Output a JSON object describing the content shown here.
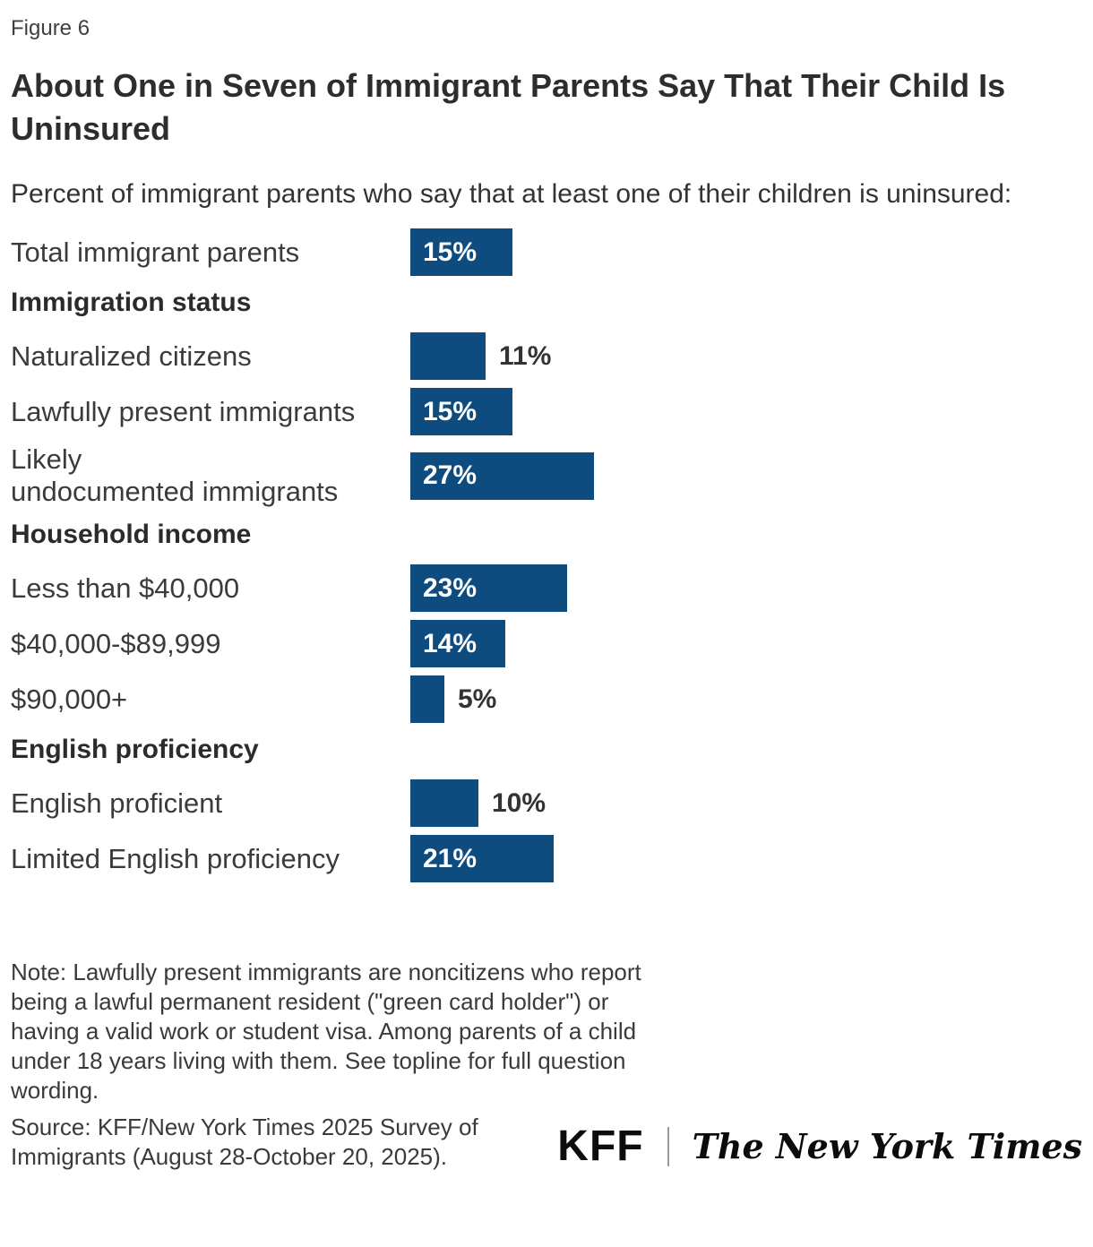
{
  "figure": {
    "label": "Figure 6",
    "title": "About One in Seven of Immigrant Parents Say That Their Child Is Uninsured",
    "subtitle": "Percent of immigrant parents who say that at least one of their children is uninsured:",
    "note": "Note: Lawfully present immigrants are noncitizens who report being a lawful permanent resident (\"green card holder\") or having a valid work or student visa. Among parents of a child under 18 years living with them. See topline for full question wording.",
    "source": "Source: KFF/New York Times 2025 Survey of Immigrants (August 28-October 20, 2025)."
  },
  "footer": {
    "kff_logo_text": "KFF",
    "nyt_logo_text": "The New York Times"
  },
  "colors": {
    "bar_blue": "#0E4C80",
    "value_label_inside": "#FFFFFF",
    "value_label_outside": "#333333"
  },
  "chart_data": {
    "type": "bar",
    "orientation": "horizontal",
    "title": "About One in Seven of Immigrant Parents Say That Their Child Is Uninsured",
    "subtitle": "Percent of immigrant parents who say that at least one of their children is uninsured:",
    "xlabel": "",
    "ylabel": "",
    "value_unit": "percent",
    "xlim": [
      0,
      30
    ],
    "grid": false,
    "legend": false,
    "bar_color": "#0E4C80",
    "groups": [
      {
        "header": null,
        "rows": [
          {
            "label": "Total immigrant parents",
            "label_lines": [
              "Total immigrant parents"
            ],
            "value": 15,
            "value_label": "15%",
            "value_position": "inside"
          }
        ]
      },
      {
        "header": "Immigration status",
        "rows": [
          {
            "label": "Naturalized citizens",
            "label_lines": [
              "Naturalized citizens"
            ],
            "value": 11,
            "value_label": "11%",
            "value_position": "outside"
          },
          {
            "label": "Lawfully present immigrants",
            "label_lines": [
              "Lawfully present immigrants"
            ],
            "value": 15,
            "value_label": "15%",
            "value_position": "inside"
          },
          {
            "label": "Likely undocumented immigrants",
            "label_lines": [
              "Likely",
              "undocumented immigrants"
            ],
            "value": 27,
            "value_label": "27%",
            "value_position": "inside"
          }
        ]
      },
      {
        "header": "Household income",
        "rows": [
          {
            "label": "Less than $40,000",
            "label_lines": [
              "Less than $40,000"
            ],
            "value": 23,
            "value_label": "23%",
            "value_position": "inside"
          },
          {
            "label": "$40,000-$89,999",
            "label_lines": [
              "$40,000-$89,999"
            ],
            "value": 14,
            "value_label": "14%",
            "value_position": "inside"
          },
          {
            "label": "$90,000+",
            "label_lines": [
              "$90,000+"
            ],
            "value": 5,
            "value_label": "5%",
            "value_position": "outside"
          }
        ]
      },
      {
        "header": "English proficiency",
        "rows": [
          {
            "label": "English proficient",
            "label_lines": [
              "English proficient"
            ],
            "value": 10,
            "value_label": "10%",
            "value_position": "outside"
          },
          {
            "label": "Limited English proficiency",
            "label_lines": [
              "Limited English proficiency"
            ],
            "value": 21,
            "value_label": "21%",
            "value_position": "inside"
          }
        ]
      }
    ]
  }
}
